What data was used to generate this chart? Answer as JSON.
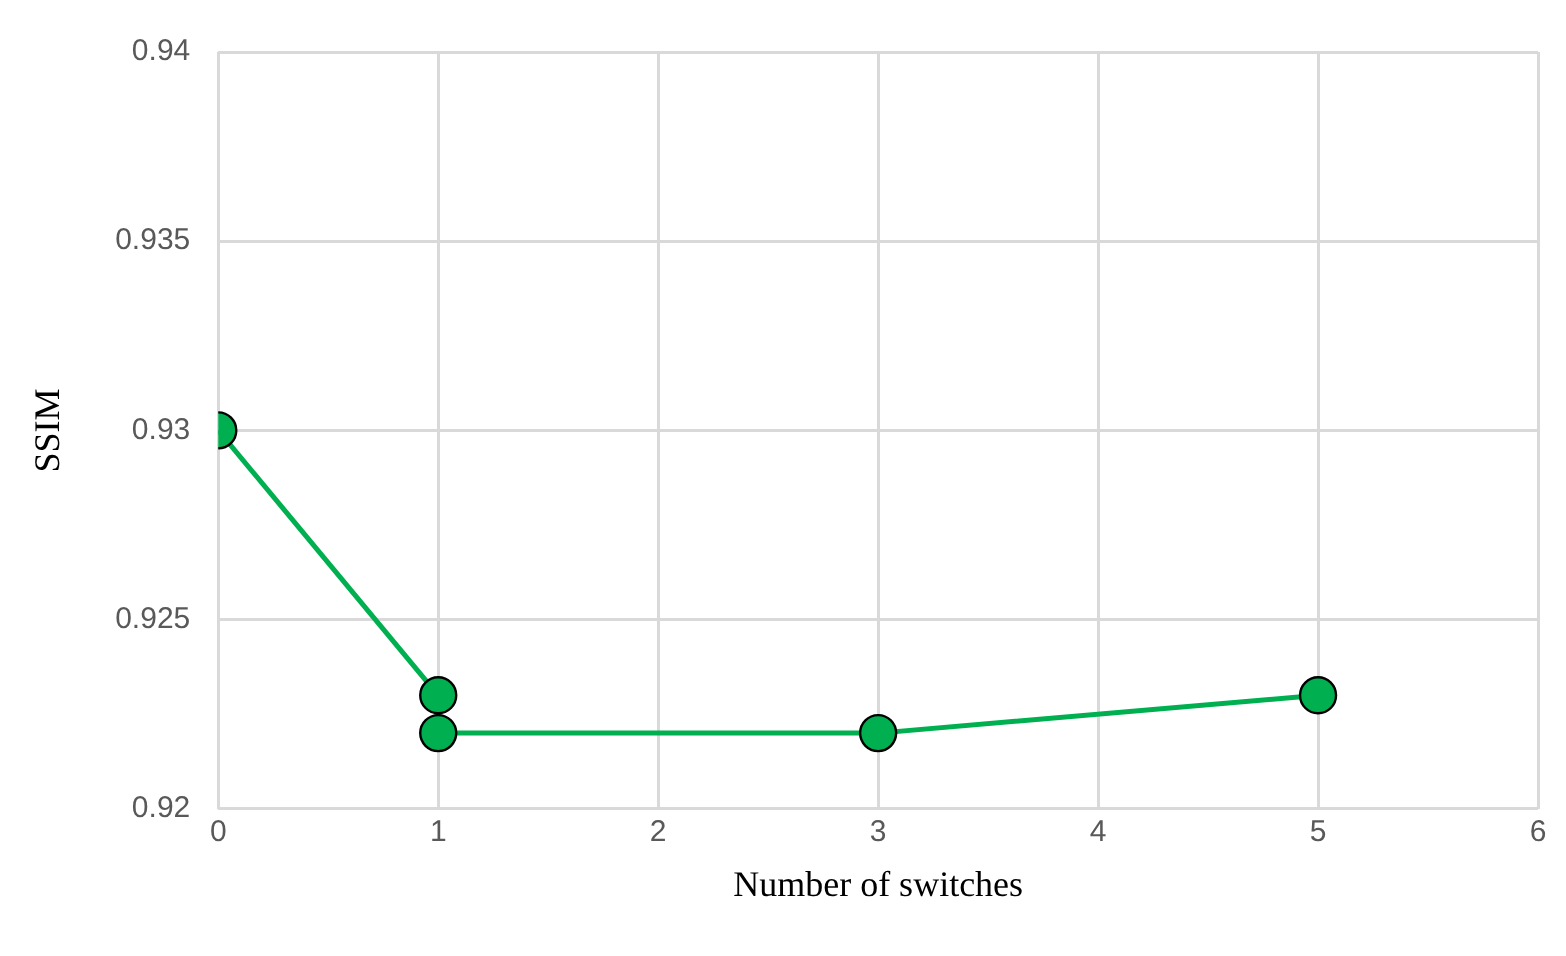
{
  "chart_data": {
    "type": "line",
    "xlabel": "Number of switches",
    "ylabel": "SSIM",
    "x": [
      0,
      1,
      1,
      3,
      5
    ],
    "series": [
      {
        "color": "#00b050",
        "values": [
          0.93,
          0.923,
          0.922,
          0.922,
          0.923
        ]
      }
    ],
    "xlim": [
      0,
      6
    ],
    "xticks": [
      0,
      1,
      2,
      3,
      4,
      5,
      6
    ],
    "ylim": [
      0.92,
      0.94
    ],
    "yticks": [
      0.92,
      0.925,
      0.93,
      0.935,
      0.94
    ],
    "grid": true,
    "legend": false,
    "marker": "circle",
    "line_style": "solid"
  }
}
